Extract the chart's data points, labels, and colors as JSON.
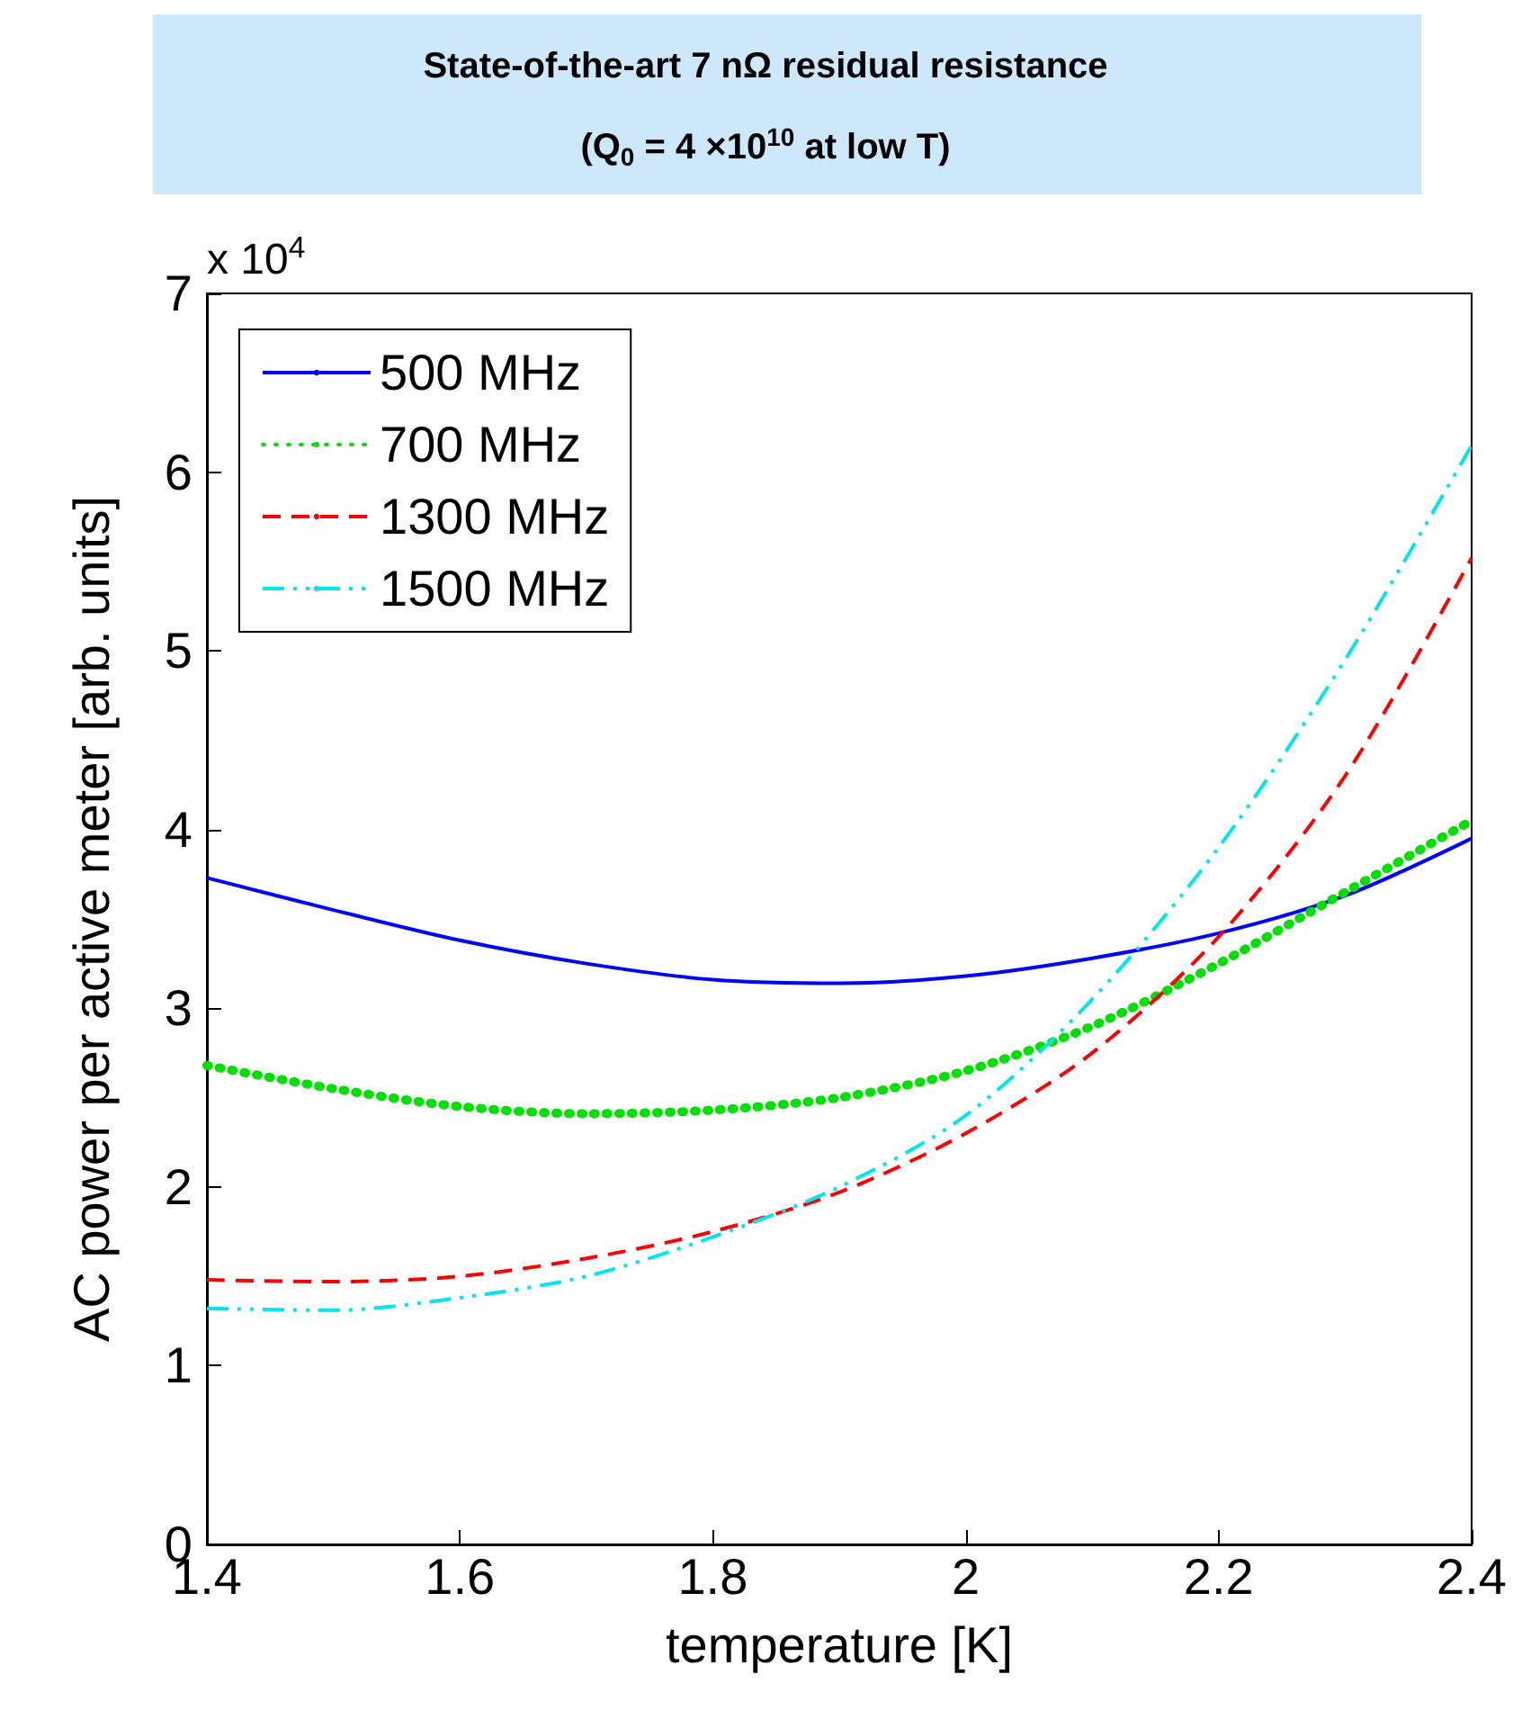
{
  "chart_data": {
    "type": "line",
    "title": "State-of-the-art 7 nΩ residual resistance",
    "subtitle": "(Q$_{0}$ = 4 ×10$^{10}$ at low T)",
    "xlabel": "temperature [K]",
    "ylabel": "AC power per active meter [arb. units]",
    "annotations": [
      "x 10$^{4}$"
    ],
    "x": [
      1.4,
      1.5,
      1.6,
      1.7,
      1.8,
      1.9,
      2.0,
      2.1,
      2.2,
      2.3,
      2.4
    ],
    "series": [
      {
        "name": "500 MHz",
        "color": "#0000ff",
        "line_style": "solid",
        "values": [
          3.73,
          3.55,
          3.38,
          3.25,
          3.16,
          3.14,
          3.18,
          3.28,
          3.42,
          3.63,
          3.95
        ]
      },
      {
        "name": "700 MHz",
        "color": "#00e000",
        "line_style": "dotted",
        "values": [
          2.68,
          2.55,
          2.45,
          2.41,
          2.43,
          2.5,
          2.65,
          2.9,
          3.25,
          3.65,
          4.05
        ]
      },
      {
        "name": "1300 MHz",
        "color": "#ff0000",
        "line_style": "dashed",
        "values": [
          1.48,
          1.47,
          1.5,
          1.6,
          1.75,
          1.97,
          2.3,
          2.75,
          3.4,
          4.3,
          5.52
        ]
      },
      {
        "name": "1500 MHz",
        "color": "#00e5ee",
        "line_style": "dashdot",
        "values": [
          1.32,
          1.31,
          1.38,
          1.5,
          1.72,
          2.0,
          2.4,
          3.05,
          3.9,
          4.95,
          6.15
        ]
      }
    ],
    "xlim": [
      1.4,
      2.4
    ],
    "xticks": [
      1.4,
      1.6,
      1.8,
      2,
      2.2,
      2.4
    ],
    "ylim": [
      0,
      7
    ],
    "yticks": [
      0,
      1,
      2,
      3,
      4,
      5,
      6,
      7
    ],
    "grid": false,
    "legend": "top left",
    "marker": "none"
  }
}
